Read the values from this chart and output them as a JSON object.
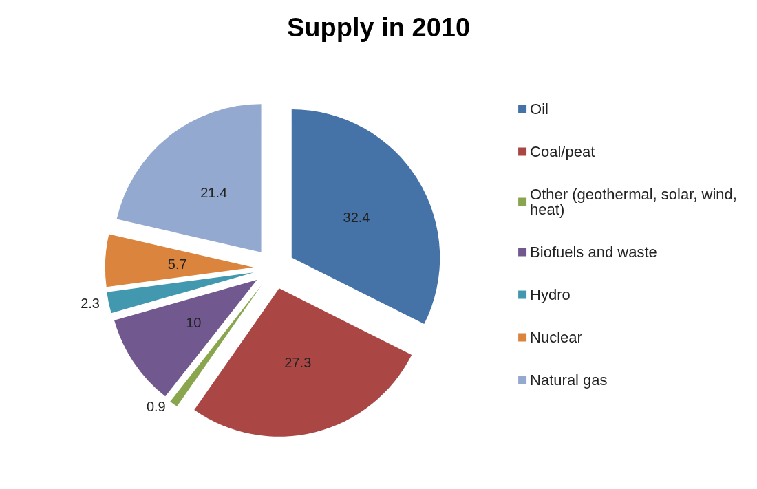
{
  "chart_data": {
    "type": "pie",
    "title": "Supply in 2010",
    "categories": [
      "Oil",
      "Coal/peat",
      "Other (geothermal, solar, wind, heat)",
      "Biofuels and waste",
      "Hydro",
      "Nuclear",
      "Natural gas"
    ],
    "values": [
      32.4,
      27.3,
      0.9,
      10,
      2.3,
      5.7,
      21.4
    ],
    "colors": [
      "#4572a7",
      "#aa4643",
      "#89a54e",
      "#71588f",
      "#4198af",
      "#db843d",
      "#93a9cf"
    ],
    "data_labels": true,
    "legend": "right"
  }
}
